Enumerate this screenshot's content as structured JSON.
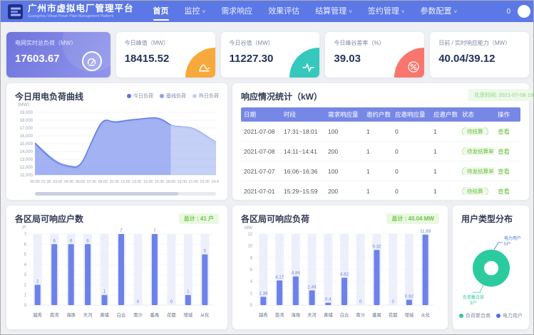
{
  "header": {
    "title": "广州市虚拟电厂管理平台",
    "subtitle": "Guangzhou Virtual Power Plant Management Platform",
    "nav": [
      {
        "label": "首页",
        "active": true,
        "dropdown": false
      },
      {
        "label": "监控",
        "active": false,
        "dropdown": true
      },
      {
        "label": "需求响应",
        "active": false,
        "dropdown": false
      },
      {
        "label": "效果评估",
        "active": false,
        "dropdown": false
      },
      {
        "label": "结算管理",
        "active": false,
        "dropdown": true
      },
      {
        "label": "签约管理",
        "active": false,
        "dropdown": true
      },
      {
        "label": "参数配置",
        "active": false,
        "dropdown": true
      }
    ],
    "notification_count": "0",
    "bg_color": "#5c78e6"
  },
  "kpi_cards": [
    {
      "label": "电网实时总负荷（MW）",
      "value": "17603.67",
      "icon": "gauge",
      "icon_color": "#ffffff",
      "highlight": true
    },
    {
      "label": "今日峰值（MW）",
      "value": "18415.52",
      "icon": "peak",
      "icon_color": "#f7a93c",
      "highlight": false
    },
    {
      "label": "今日谷值（MW）",
      "value": "11227.30",
      "icon": "pulse",
      "icon_color": "#35c9be",
      "highlight": false
    },
    {
      "label": "今日峰谷差率（%）",
      "value": "39.03",
      "icon": "percent",
      "icon_color": "#f8766e",
      "highlight": false
    },
    {
      "label": "日前 / 实时响应能力（MW）",
      "value": "40.04/39.12",
      "icon": "none",
      "icon_color": "",
      "highlight": false
    }
  ],
  "response_table": {
    "title": "响应情况统计（kW）",
    "timestamp": "北京时间: 2021-07-08 18:11",
    "columns": [
      "日期",
      "时段",
      "需求响应量",
      "邀约户数",
      "应邀响应量",
      "应邀户数",
      "状态",
      "操作"
    ],
    "rows": [
      {
        "date": "2021-07-08",
        "period": "17:31~18:01",
        "demand": "100",
        "invited": "1",
        "responded": "0",
        "resp_users": "1",
        "status": "待结算",
        "action": "查看"
      },
      {
        "date": "2021-07-08",
        "period": "14:11~14:41",
        "demand": "200",
        "invited": "1",
        "responded": "0",
        "resp_users": "1",
        "status": "待发结算单",
        "action": "查看"
      },
      {
        "date": "2021-07-07",
        "period": "16:06~16:36",
        "demand": "100",
        "invited": "1",
        "responded": "0",
        "resp_users": "1",
        "status": "待发结算单",
        "action": "查看"
      },
      {
        "date": "2021-07-01",
        "period": "15:29~15:59",
        "demand": "200",
        "invited": "1",
        "responded": "0",
        "resp_users": "1",
        "status": "待结算",
        "action": "查看"
      }
    ]
  },
  "chart_data": [
    {
      "id": "load_curve",
      "type": "area",
      "title": "今日用电负荷曲线",
      "ylabel": "(MW)",
      "ylim": [
        11000,
        19000
      ],
      "yticks": [
        11000,
        12000,
        13000,
        14000,
        15000,
        16000,
        17000,
        18000,
        19000
      ],
      "x": [
        "00:00",
        "01:30",
        "03:00",
        "04:30",
        "06:00",
        "07:30",
        "09:00",
        "10:30",
        "12:00",
        "13:30",
        "15:00",
        "16:30",
        "18:00",
        "19:30",
        "21:00",
        "22:30",
        "24:00"
      ],
      "legend_position": "top-right",
      "series": [
        {
          "name": "今日负荷",
          "color": "#5a73e8",
          "fill": "rgba(108,130,234,0.38)",
          "values": [
            15050,
            13600,
            12450,
            12050,
            11900,
            15300,
            18300,
            17650,
            17950,
            18100,
            18300,
            18350,
            17400,
            null,
            null,
            null,
            null
          ]
        },
        {
          "name": "基线负荷",
          "color": "#8ba0f0",
          "fill": "rgba(139,160,240,0.30)",
          "values": [
            15150,
            13750,
            12600,
            12150,
            12000,
            15150,
            18150,
            17750,
            18000,
            18150,
            18250,
            18300,
            17300,
            17200,
            17050,
            16150,
            15200
          ]
        },
        {
          "name": "昨日负荷",
          "color": "#c3cff8",
          "fill": "rgba(195,207,248,0.55)",
          "values": [
            14900,
            13450,
            12300,
            11900,
            11750,
            15000,
            18050,
            17550,
            17850,
            18000,
            18150,
            18200,
            17150,
            17050,
            16900,
            15950,
            15000
          ]
        }
      ]
    },
    {
      "id": "district_households",
      "type": "bar",
      "title": "各区局可响应户数",
      "total_badge": "总计 : 41 户",
      "unit": "户",
      "ylim": [
        0,
        7
      ],
      "yticks": [
        0,
        1,
        2,
        3,
        4,
        5,
        6,
        7
      ],
      "categories": [
        "越秀",
        "荔湾",
        "海珠",
        "天河",
        "黄埔",
        "白云",
        "南沙",
        "番禺",
        "花都",
        "增城",
        "从化"
      ],
      "values": [
        2,
        6,
        6,
        6,
        1,
        7,
        0,
        7,
        0,
        1,
        5
      ],
      "bar_color": "#6c82ea"
    },
    {
      "id": "district_load",
      "type": "bar",
      "title": "各区局可响应负荷",
      "total_badge": "总计 : 40.04 MW",
      "unit": "MW",
      "ylim": [
        0,
        12
      ],
      "yticks": [
        0,
        2,
        4,
        6,
        8,
        10,
        12
      ],
      "categories": [
        "越秀",
        "荔湾",
        "海珠",
        "天河",
        "黄埔",
        "白云",
        "南沙",
        "番禺",
        "花都",
        "增城",
        "从化"
      ],
      "values": [
        1.39,
        4.17,
        4.84,
        2.49,
        0.4,
        4.62,
        0,
        9.32,
        0,
        0.92,
        11.89
      ],
      "bar_color": "#6c82ea"
    },
    {
      "id": "user_type",
      "type": "pie",
      "title": "用户类型分布",
      "slices": [
        {
          "label": "负荷聚合商",
          "value": 3,
          "display": "3户",
          "color": "#2bcb9f"
        },
        {
          "label": "电力用户",
          "value": 0,
          "display": "0户",
          "color": "#4a6fe3"
        }
      ]
    }
  ]
}
